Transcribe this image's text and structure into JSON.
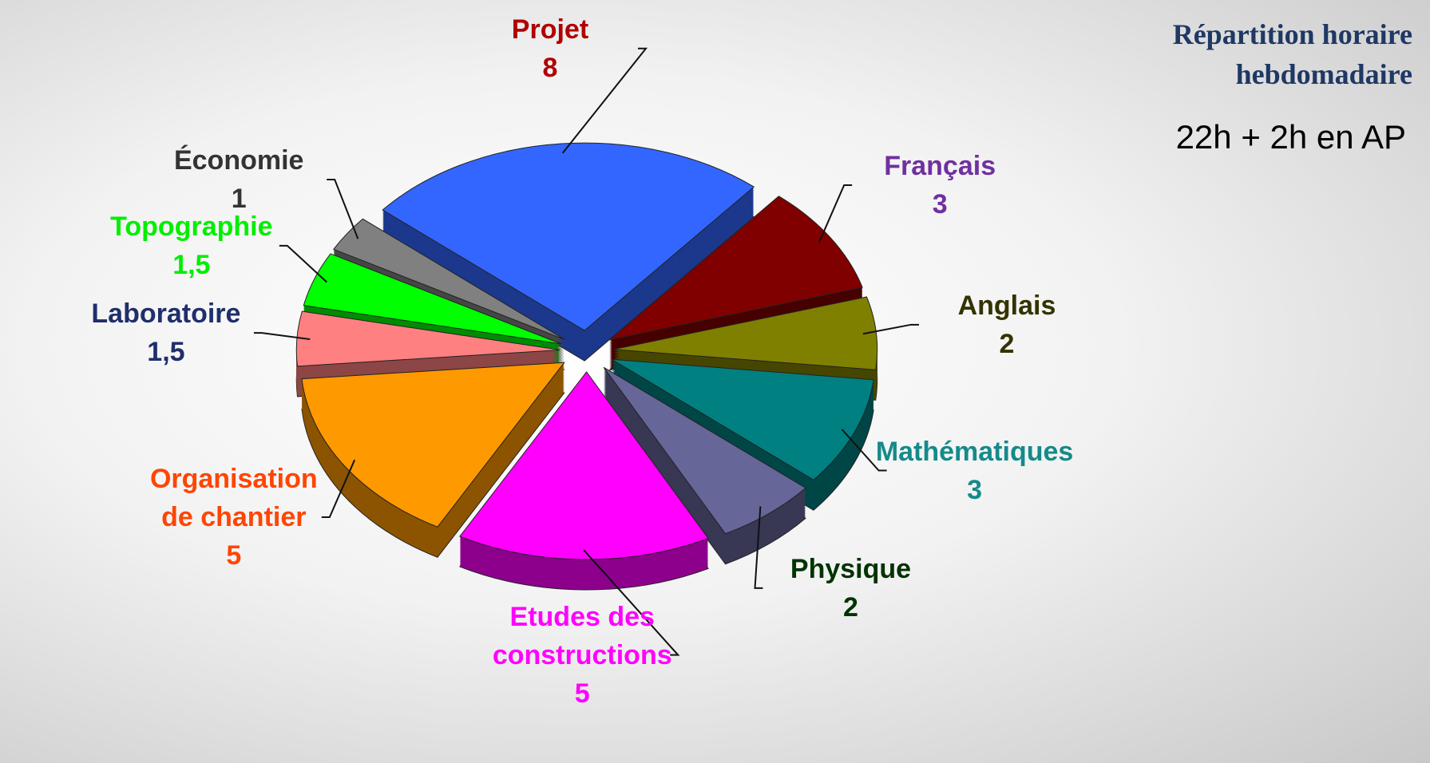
{
  "chart_data": {
    "type": "pie",
    "title": "Répartition horaire hebdomadaire",
    "subtitle": "22h + 2h en AP",
    "categories": [
      "Projet",
      "Français",
      "Anglais",
      "Mathématiques",
      "Physique",
      "Etudes des constructions",
      "Organisation de chantier",
      "Laboratoire",
      "Topographie",
      "Économie"
    ],
    "values": [
      8,
      3,
      2,
      3,
      2,
      5,
      5,
      1.5,
      1.5,
      1
    ],
    "value_labels": [
      "8",
      "3",
      "2",
      "3",
      "2",
      "5",
      "5",
      "1,5",
      "1,5",
      "1"
    ],
    "colors": [
      "#3366ff",
      "#800000",
      "#808000",
      "#008080",
      "#666699",
      "#ff00ff",
      "#ff9900",
      "#ff8080",
      "#00ff00",
      "#808080"
    ],
    "label_colors": [
      "#b00000",
      "#7030a0",
      "#333300",
      "#158a8a",
      "#003300",
      "#ff00ff",
      "#ff4500",
      "#1f2f6b",
      "#00ee00",
      "#333333"
    ]
  }
}
